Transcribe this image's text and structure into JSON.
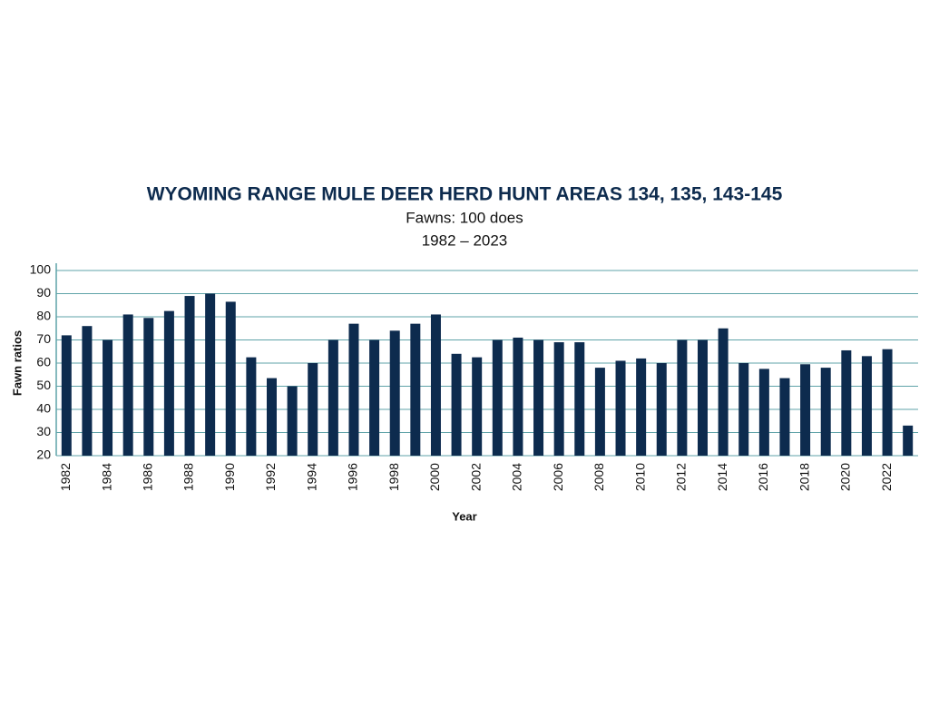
{
  "chart_data": {
    "type": "bar",
    "title": "WYOMING RANGE MULE DEER HERD HUNT AREAS 134, 135, 143-145",
    "subtitle": [
      "Fawns: 100 does",
      "1982 – 2023"
    ],
    "x_label": "Year",
    "y_label": "Fawn ratios",
    "categories": [
      "1982",
      null,
      "1984",
      null,
      "1986",
      null,
      "1988",
      null,
      "1990",
      null,
      "1992",
      null,
      "1994",
      null,
      "1996",
      null,
      "1998",
      null,
      "2000",
      null,
      "2002",
      null,
      "2004",
      null,
      "2006",
      null,
      "2008",
      null,
      "2010",
      null,
      "2012",
      null,
      "2014",
      null,
      "2016",
      null,
      "2018",
      null,
      "2020",
      null,
      "2022",
      null
    ],
    "values": [
      72,
      76,
      70,
      81,
      79.5,
      82.5,
      89,
      90,
      86.5,
      62.5,
      53.5,
      50,
      60,
      70,
      77,
      70,
      74,
      77,
      81,
      64,
      62.5,
      70,
      71,
      70,
      69,
      69,
      58,
      61,
      62,
      60,
      70,
      70,
      75,
      60,
      57.5,
      53.5,
      59.5,
      58,
      65.5,
      63,
      66,
      33
    ],
    "color": "#0d2b4e",
    "ylim": [
      20,
      100
    ],
    "yticks": [
      20,
      30,
      40,
      50,
      60,
      70,
      80,
      90,
      100
    ],
    "grid": true
  }
}
